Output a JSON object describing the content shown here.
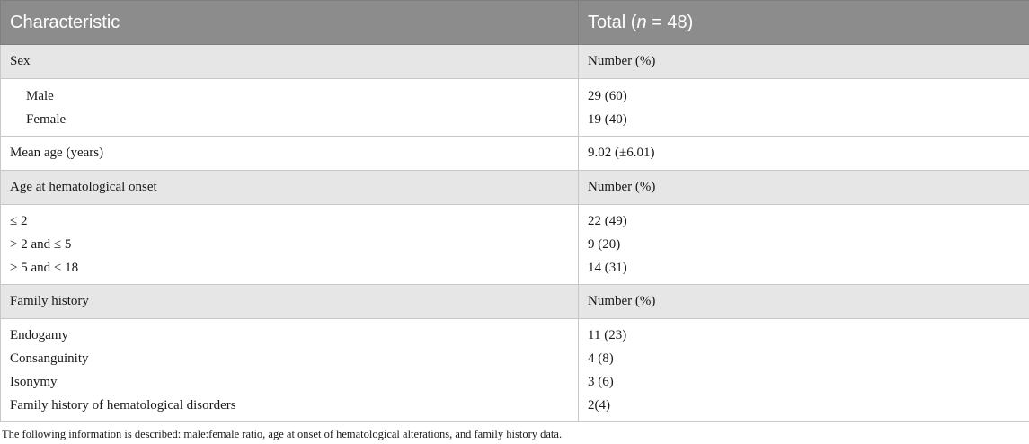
{
  "table": {
    "header": {
      "col1": "Characteristic",
      "col2_prefix": "Total (",
      "col2_italic": "n",
      "col2_suffix": " = 48)"
    },
    "sections": {
      "sex": {
        "label": "Sex",
        "value": "Number (%)",
        "rows": [
          {
            "label": "Male",
            "value": "29 (60)"
          },
          {
            "label": "Female",
            "value": "19 (40)"
          }
        ]
      },
      "mean_age": {
        "label": "Mean age (years)",
        "value": "9.02 (±6.01)"
      },
      "age_onset": {
        "label": "Age at hematological onset",
        "value": "Number (%)",
        "rows": [
          {
            "label": "≤ 2",
            "value": "22 (49)"
          },
          {
            "label": "> 2 and ≤ 5",
            "value": "9 (20)"
          },
          {
            "label": "> 5 and < 18",
            "value": "14 (31)"
          }
        ]
      },
      "family": {
        "label": "Family history",
        "value": "Number (%)",
        "rows": [
          {
            "label": "Endogamy",
            "value": "11 (23)"
          },
          {
            "label": "Consanguinity",
            "value": "4 (8)"
          },
          {
            "label": "Isonymy",
            "value": "3 (6)"
          },
          {
            "label": "Family history of hematological disorders",
            "value": "2(4)"
          }
        ]
      }
    }
  },
  "footnote": "The following information is described: male:female ratio, age at onset of hematological alterations, and family history data."
}
